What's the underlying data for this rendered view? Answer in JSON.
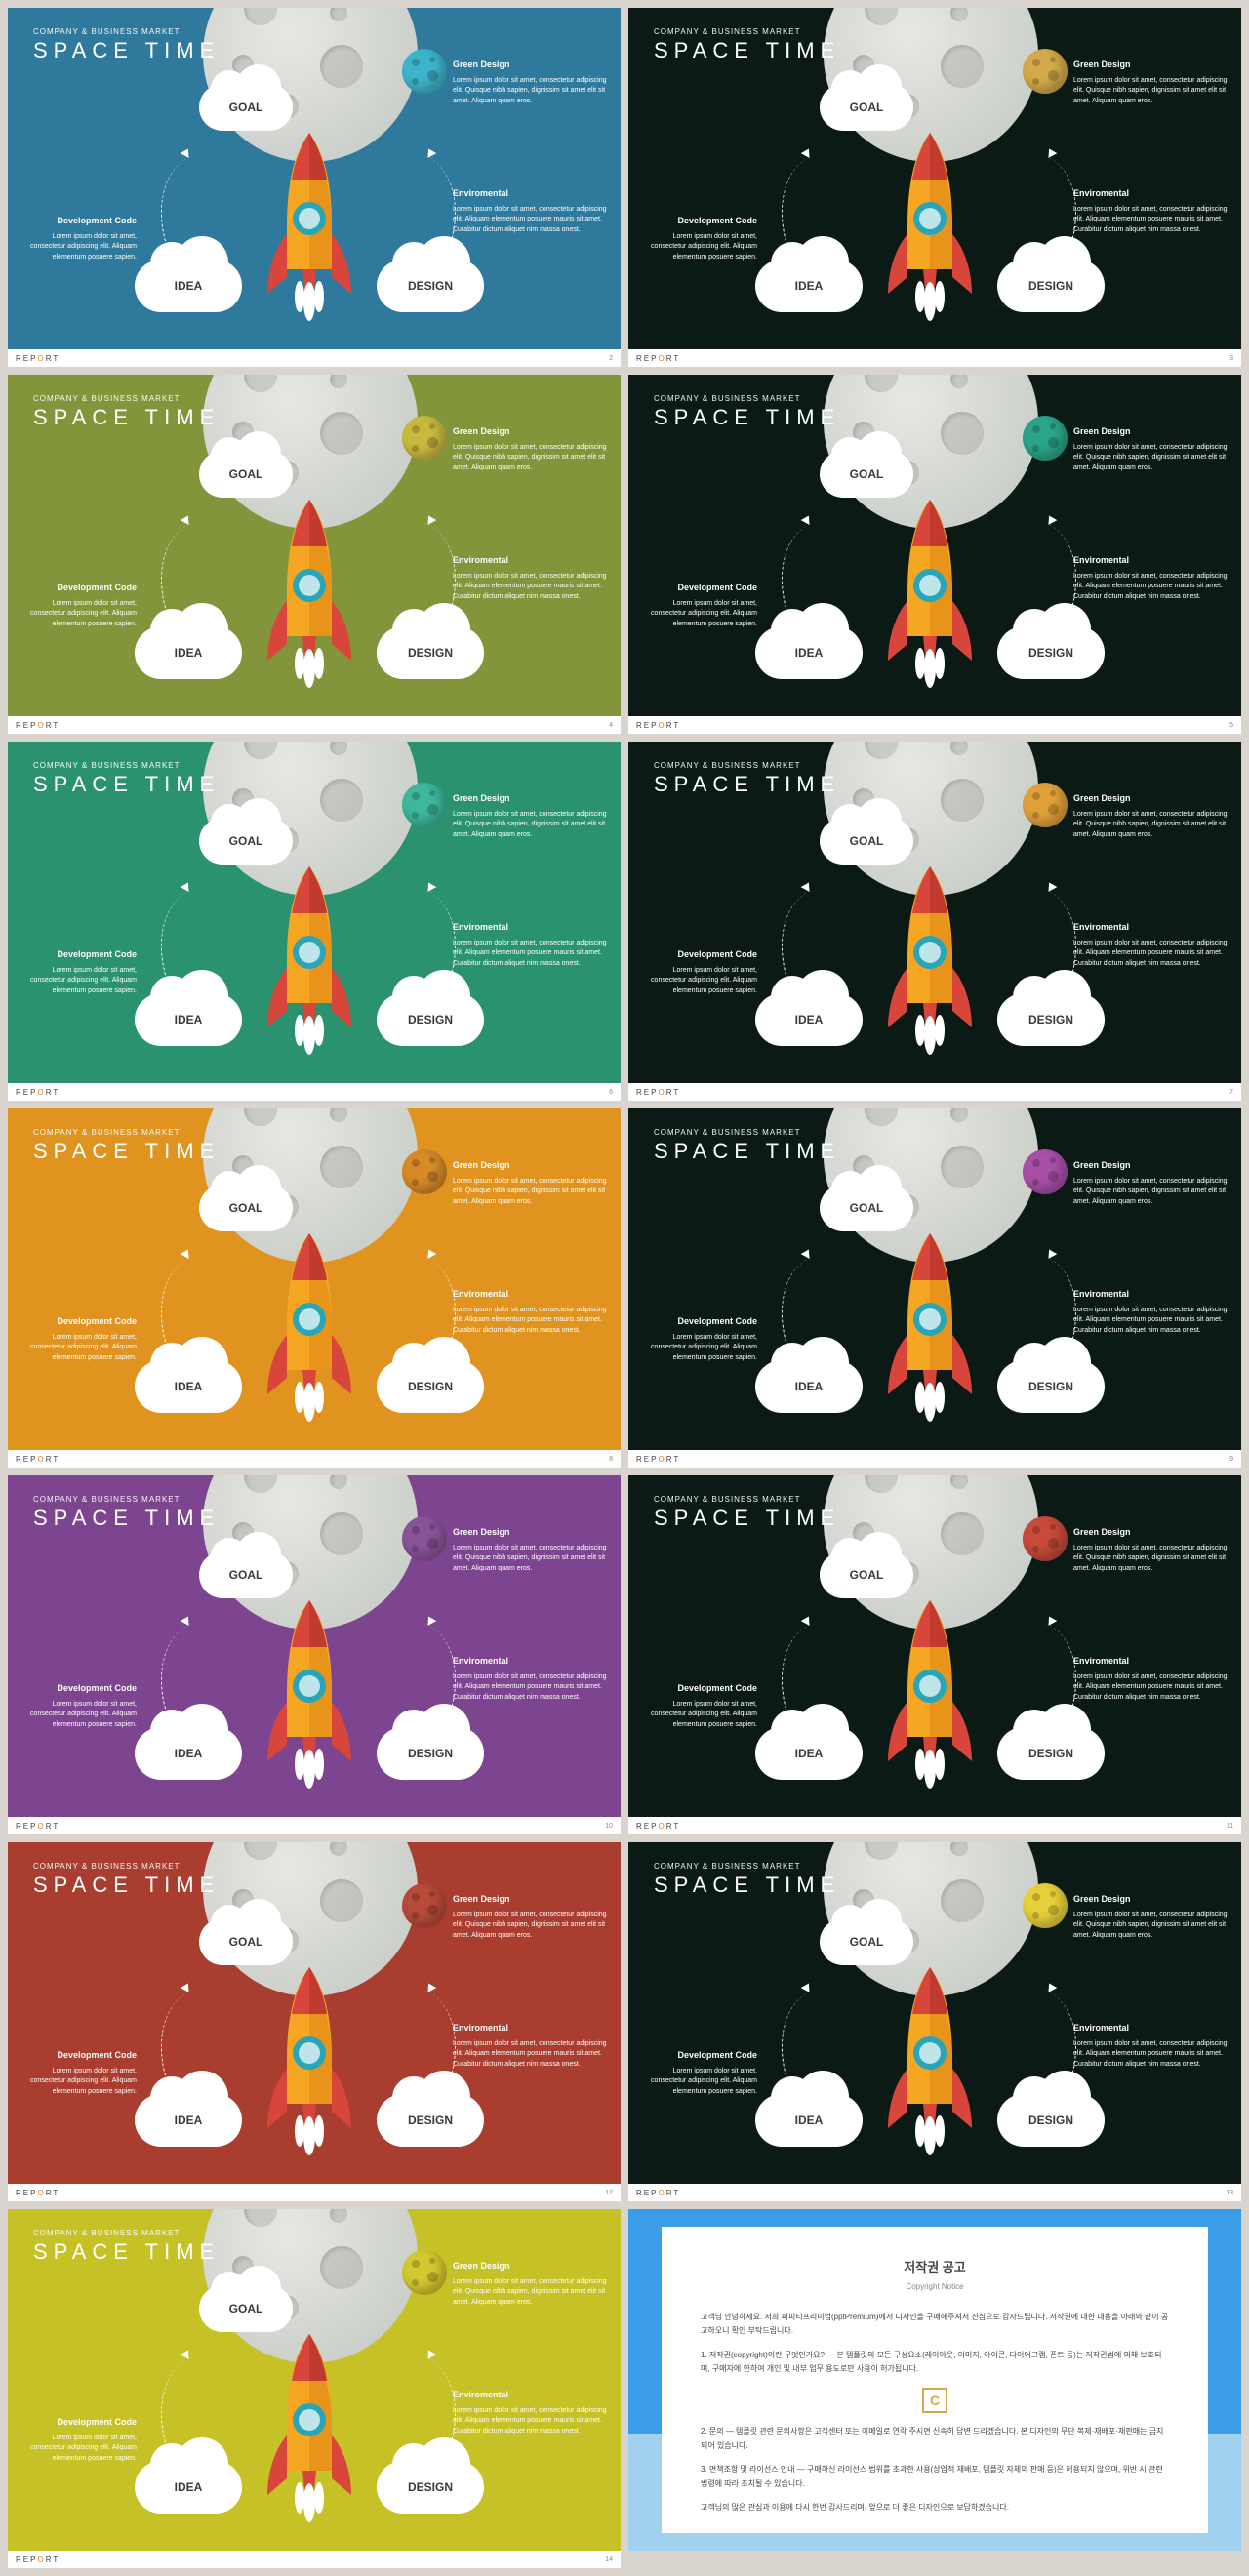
{
  "common": {
    "subtitle": "COMPANY & BUSINESS MARKET",
    "title": "SPACE TIME",
    "goal": "GOAL",
    "idea": "IDEA",
    "design": "DESIGN",
    "footer_pre": "REP",
    "footer_o": "O",
    "footer_post": "RT",
    "green_design_h": "Green Design",
    "green_design_t": "Lorem ipsum dolor sit amet, consectetur adipiscing elit. Quisque nibh sapien, dignissim sit amet elit sit amet. Aliquam quam eros.",
    "env_h": "Enviromental",
    "env_t": "Lorem ipsum dolor sit amet, consectetur adipiscing elit. Aliquam elementum posuere mauris sit amet. Curabitur dictum aliquet nim massa onest.",
    "dev_h": "Development Code",
    "dev_t": "Lorem ipsum dolor sit amet, consectetur adipiscing elit. Aliquam elementum posuere sapien."
  },
  "slides": [
    {
      "bg": "#2f7a9c",
      "planet": "#3eb4cc",
      "page": "2"
    },
    {
      "bg": "#0c1a16",
      "planet": "#d4a94a",
      "page": "3"
    },
    {
      "bg": "#82953a",
      "planet": "#c8b93e",
      "page": "4"
    },
    {
      "bg": "#0c1a16",
      "planet": "#2aa58b",
      "page": "5"
    },
    {
      "bg": "#2b9270",
      "planet": "#3db89c",
      "page": "6"
    },
    {
      "bg": "#0c1a16",
      "planet": "#e0a13a",
      "page": "7"
    },
    {
      "bg": "#e0941f",
      "planet": "#d68a28",
      "page": "8"
    },
    {
      "bg": "#0c1a16",
      "planet": "#a84fa8",
      "page": "9"
    },
    {
      "bg": "#7d4590",
      "planet": "#8a5398",
      "page": "10"
    },
    {
      "bg": "#0c1a16",
      "planet": "#c74a3a",
      "page": "11"
    },
    {
      "bg": "#a83d30",
      "planet": "#b84a3a",
      "page": "12"
    },
    {
      "bg": "#0c1a16",
      "planet": "#e8d03a",
      "page": "13"
    },
    {
      "bg": "#c6c127",
      "planet": "#d4c830",
      "page": "14"
    }
  ],
  "rocket": {
    "body": "#f5a623",
    "body_dark": "#e8941a",
    "nose": "#d8453a",
    "nose_dark": "#c03a30",
    "fin": "#d8453a",
    "window_ring": "#2aa5b8",
    "window": "#bde5ea",
    "flame": "#ffffff"
  },
  "copyright": {
    "title": "저작권 공고",
    "subtitle": "Copyright Notice",
    "p1": "고객님 안녕하세요. 저희 피피티프리미엄(pptPremium)에서 디자인을 구매해주셔서 진심으로 감사드립니다. 저작권에 대한 내용을 아래와 같이 공고하오니 확인 부탁드립니다.",
    "p2": "1. 저작권(copyright)이란 무엇인가요? — 본 템플릿의 모든 구성요소(레이아웃, 이미지, 아이콘, 다이어그램, 폰트 등)는 저작권법에 의해 보호되며, 구매자에 한하여 개인 및 내부 업무 용도로만 사용이 허가됩니다.",
    "p3": "2. 문의 — 템플릿 관련 문의사항은 고객센터 또는 이메일로 연락 주시면 신속히 답변 드리겠습니다. 본 디자인의 무단 복제·재배포·재판매는 금지되어 있습니다.",
    "p4": "3. 면책조항 및 라이선스 안내 — 구매하신 라이선스 범위를 초과한 사용(상업적 재배포, 템플릿 자체의 판매 등)은 허용되지 않으며, 위반 시 관련 법령에 따라 조치될 수 있습니다.",
    "p5": "고객님의 많은 관심과 이용에 다시 한번 감사드리며, 앞으로 더 좋은 디자인으로 보답하겠습니다."
  }
}
